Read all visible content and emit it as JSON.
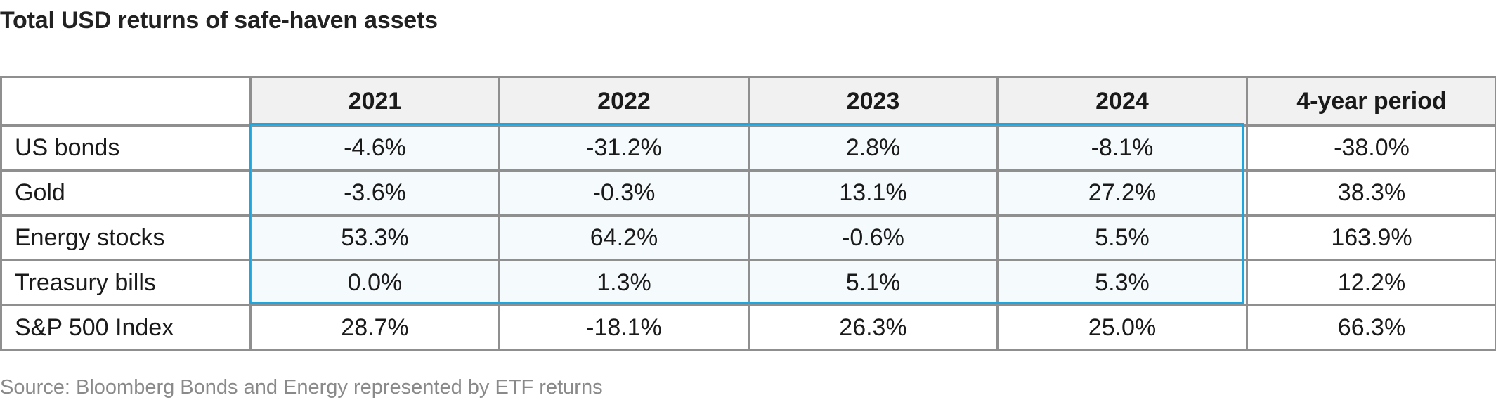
{
  "chart_data": {
    "type": "table",
    "title": "Total USD returns of safe-haven assets",
    "columns": [
      "",
      "2021",
      "2022",
      "2023",
      "2024",
      "4-year period"
    ],
    "rows": [
      {
        "label": "US bonds",
        "values": [
          "-4.6%",
          "-31.2%",
          "2.8%",
          "-8.1%",
          "-38.0%"
        ]
      },
      {
        "label": "Gold",
        "values": [
          "-3.6%",
          "-0.3%",
          "13.1%",
          "27.2%",
          "38.3%"
        ]
      },
      {
        "label": "Energy stocks",
        "values": [
          "53.3%",
          "64.2%",
          "-0.6%",
          "5.5%",
          "163.9%"
        ]
      },
      {
        "label": "Treasury bills",
        "values": [
          "0.0%",
          "1.3%",
          "5.1%",
          "5.3%",
          "12.2%"
        ]
      },
      {
        "label": "S&P 500 Index",
        "values": [
          "28.7%",
          "-18.1%",
          "26.3%",
          "25.0%",
          "66.3%"
        ]
      }
    ],
    "highlighted_region": {
      "rows": [
        "US bonds",
        "Gold",
        "Energy stocks",
        "Treasury bills"
      ],
      "columns": [
        "2021",
        "2022",
        "2023",
        "2024"
      ]
    },
    "source": "Source: Bloomberg Bonds and Energy represented by ETF returns"
  },
  "colors": {
    "highlight_border": "#1fa6df",
    "grid_border": "#8f8f8f",
    "header_background": "#f1f1f1",
    "source_text": "#8a8a8a"
  }
}
